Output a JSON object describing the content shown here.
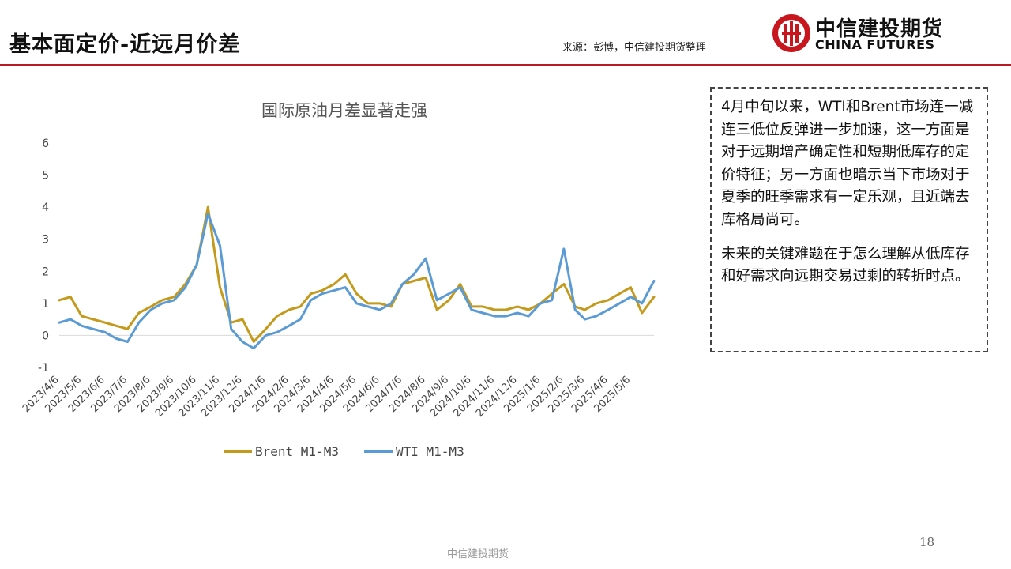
{
  "header": {
    "title": "基本面定价-近远月价差",
    "source": "来源：彭博，中信建投期货整理",
    "logo_cn": "中信建投期货",
    "logo_en": "CHINA FUTURES"
  },
  "commentary": {
    "paragraph1": "4月中旬以来，WTI和Brent市场连一减连三低位反弹进一步加速，这一方面是对于远期增产确定性和短期低库存的定价特征；另一方面也暗示当下市场对于夏季的旺季需求有一定乐观，且近端去库格局尚可。",
    "paragraph2": "未来的关键难题在于怎么理解从低库存和好需求向远期交易过剩的转折时点。"
  },
  "footer": {
    "text": "中信建投期货",
    "page_number": "18"
  },
  "colors": {
    "brent": "#c49a1c",
    "wti": "#5b9bd5",
    "accent": "#b81c22"
  },
  "chart_data": {
    "type": "line",
    "title": "国际原油月差显著走强",
    "ylim": [
      -1,
      6
    ],
    "yticks": [
      -1,
      0,
      1,
      2,
      3,
      4,
      5,
      6
    ],
    "x_tick_labels": [
      "2023/4/6",
      "2023/5/6",
      "2023/6/6",
      "2023/7/6",
      "2023/8/6",
      "2023/9/6",
      "2023/10/6",
      "2023/11/6",
      "2023/12/6",
      "2024/1/6",
      "2024/2/6",
      "2024/3/6",
      "2024/4/6",
      "2024/5/6",
      "2024/6/6",
      "2024/7/6",
      "2024/8/6",
      "2024/9/6",
      "2024/10/6",
      "2024/11/6",
      "2024/12/6",
      "2025/1/6",
      "2025/2/6",
      "2025/3/6",
      "2025/4/6",
      "2025/5/6"
    ],
    "legend_position": "bottom",
    "grid": false,
    "x": [
      "2023/4/6",
      "2023/4/21",
      "2023/5/6",
      "2023/5/21",
      "2023/6/6",
      "2023/6/21",
      "2023/7/6",
      "2023/7/21",
      "2023/8/6",
      "2023/8/21",
      "2023/9/6",
      "2023/9/21",
      "2023/10/6",
      "2023/10/21",
      "2023/11/6",
      "2023/11/21",
      "2023/12/6",
      "2023/12/21",
      "2024/1/6",
      "2024/1/21",
      "2024/2/6",
      "2024/2/21",
      "2024/3/6",
      "2024/3/21",
      "2024/4/6",
      "2024/4/21",
      "2024/5/6",
      "2024/5/21",
      "2024/6/6",
      "2024/6/21",
      "2024/7/6",
      "2024/7/21",
      "2024/8/6",
      "2024/8/21",
      "2024/9/6",
      "2024/9/21",
      "2024/10/6",
      "2024/10/21",
      "2024/11/6",
      "2024/11/21",
      "2024/12/6",
      "2024/12/21",
      "2025/1/6",
      "2025/1/21",
      "2025/2/6",
      "2025/2/21",
      "2025/3/6",
      "2025/3/21",
      "2025/4/6",
      "2025/4/21",
      "2025/5/6",
      "2025/5/21",
      "2025/6/6"
    ],
    "series": [
      {
        "name": "Brent M1-M3",
        "values": [
          1.1,
          1.2,
          0.6,
          0.5,
          0.4,
          0.3,
          0.2,
          0.7,
          0.9,
          1.1,
          1.2,
          1.6,
          2.2,
          4.0,
          1.5,
          0.4,
          0.5,
          -0.2,
          0.2,
          0.6,
          0.8,
          0.9,
          1.3,
          1.4,
          1.6,
          1.9,
          1.3,
          1.0,
          1.0,
          0.9,
          1.6,
          1.7,
          1.8,
          0.8,
          1.1,
          1.6,
          0.9,
          0.9,
          0.8,
          0.8,
          0.9,
          0.8,
          1.0,
          1.3,
          1.6,
          0.9,
          0.8,
          1.0,
          1.1,
          1.3,
          1.5,
          0.7,
          1.2
        ]
      },
      {
        "name": "WTI M1-M3",
        "values": [
          0.4,
          0.5,
          0.3,
          0.2,
          0.1,
          -0.1,
          -0.2,
          0.4,
          0.8,
          1.0,
          1.1,
          1.5,
          2.2,
          3.8,
          2.8,
          0.2,
          -0.2,
          -0.4,
          0.0,
          0.1,
          0.3,
          0.5,
          1.1,
          1.3,
          1.4,
          1.5,
          1.0,
          0.9,
          0.8,
          1.0,
          1.6,
          1.9,
          2.4,
          1.1,
          1.3,
          1.5,
          0.8,
          0.7,
          0.6,
          0.6,
          0.7,
          0.6,
          1.0,
          1.1,
          2.7,
          0.8,
          0.5,
          0.6,
          0.8,
          1.0,
          1.2,
          1.0,
          1.7
        ]
      }
    ]
  }
}
